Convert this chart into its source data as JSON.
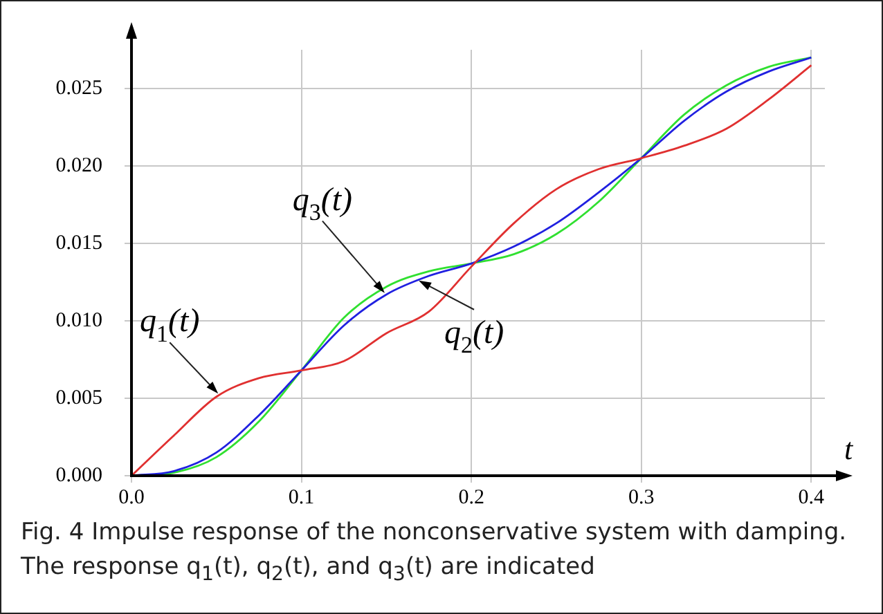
{
  "chart_data": {
    "type": "line",
    "xlabel": "t",
    "x": [
      0,
      0.025,
      0.05,
      0.075,
      0.1,
      0.125,
      0.15,
      0.175,
      0.2,
      0.225,
      0.25,
      0.275,
      0.3,
      0.325,
      0.35,
      0.375,
      0.4
    ],
    "series": [
      {
        "color": "#e03030",
        "values": [
          0,
          0.0026,
          0.0051,
          0.0063,
          0.0068,
          0.0074,
          0.0092,
          0.0106,
          0.0135,
          0.0163,
          0.0185,
          0.0198,
          0.0205,
          0.0213,
          0.0224,
          0.0243,
          0.0265
        ]
      },
      {
        "color": "#2020e0",
        "values": [
          0,
          0.0003,
          0.0015,
          0.0039,
          0.0068,
          0.0097,
          0.0117,
          0.0129,
          0.0137,
          0.0148,
          0.0163,
          0.0183,
          0.0205,
          0.0229,
          0.0248,
          0.0261,
          0.027
        ]
      },
      {
        "color": "#30e030",
        "values": [
          0,
          0.0002,
          0.0012,
          0.0035,
          0.0068,
          0.0102,
          0.0122,
          0.0132,
          0.0137,
          0.0143,
          0.0156,
          0.0177,
          0.0205,
          0.0233,
          0.0252,
          0.0264,
          0.027
        ]
      }
    ],
    "xlim": [
      0,
      0.408
    ],
    "ylim": [
      0,
      0.0275
    ],
    "xticks": [
      {
        "value": 0,
        "label": "0.0"
      },
      {
        "value": 0.1,
        "label": "0.1"
      },
      {
        "value": 0.2,
        "label": "0.2"
      },
      {
        "value": 0.3,
        "label": "0.3"
      },
      {
        "value": 0.4,
        "label": "0.4"
      }
    ],
    "yticks": [
      {
        "value": 0,
        "label": "0.000"
      },
      {
        "value": 0.005,
        "label": "0.005"
      },
      {
        "value": 0.01,
        "label": "0.010"
      },
      {
        "value": 0.015,
        "label": "0.015"
      },
      {
        "value": 0.02,
        "label": "0.020"
      },
      {
        "value": 0.025,
        "label": "0.025"
      }
    ],
    "grid": true,
    "legend": false,
    "marker": "none",
    "line_style": "solid",
    "annotations": [
      {
        "text": "q$_{1}$(t)",
        "x": 0.051,
        "y": 0.0053
      },
      {
        "text": "q$_{3}$(t)",
        "x": 0.149,
        "y": 0.0118
      },
      {
        "text": "q$_{2}$(t)",
        "x": 0.169,
        "y": 0.0126
      },
      "Fig. 4 Impulse response of the nonconservative system with damping. The response q$_{1}$(t), q$_{2}$(t), and q$_{3}$(t) are indicated"
    ]
  }
}
